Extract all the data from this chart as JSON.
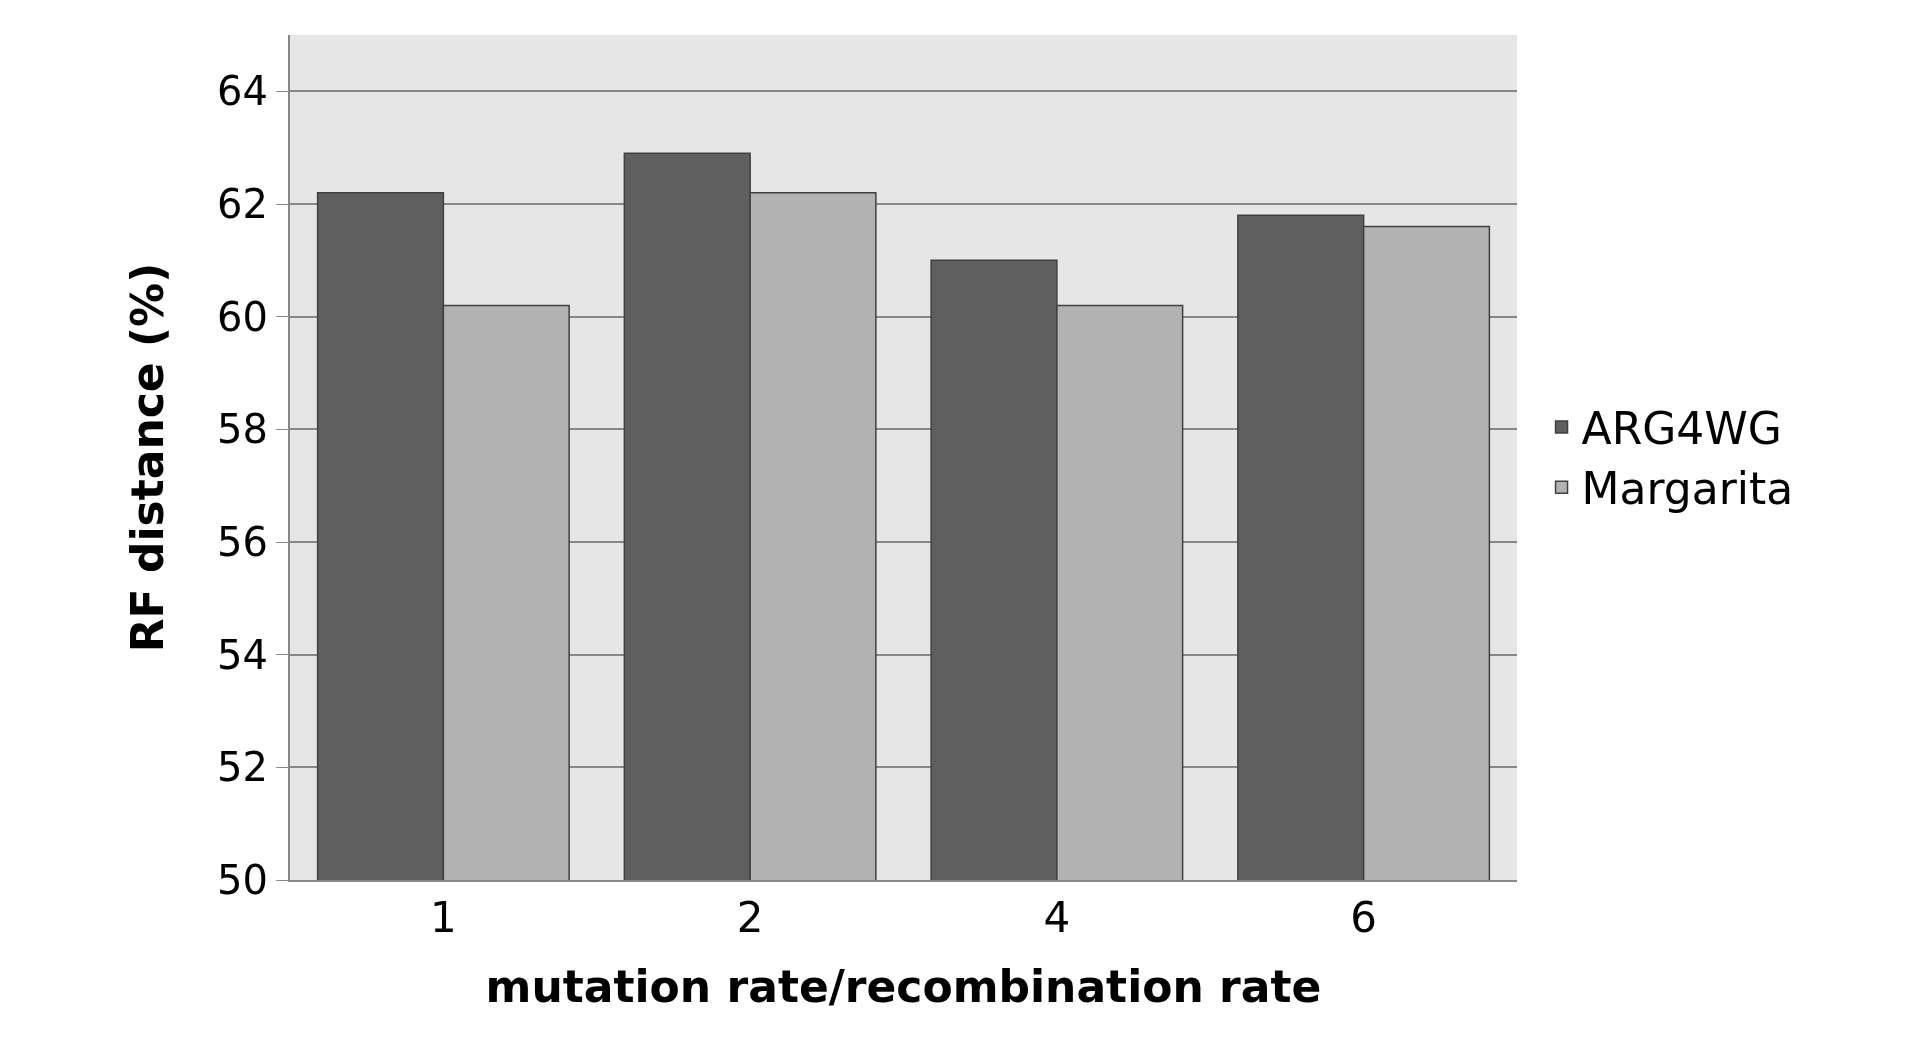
{
  "chart_data": {
    "type": "bar",
    "xlabel": "mutation rate/recombination rate",
    "ylabel": "RF distance (%)",
    "categories": [
      "1",
      "2",
      "4",
      "6"
    ],
    "series": [
      {
        "name": "ARG4WG",
        "color": "#5f5f5f",
        "values": [
          62.2,
          62.9,
          61.0,
          61.8
        ]
      },
      {
        "name": "Margarita",
        "color": "#b2b2b2",
        "values": [
          60.2,
          62.2,
          60.2,
          61.6
        ]
      }
    ],
    "ylim": [
      50,
      65
    ],
    "yticks": [
      50,
      52,
      54,
      56,
      58,
      60,
      62,
      64
    ],
    "grid": "y",
    "legend": "right"
  }
}
